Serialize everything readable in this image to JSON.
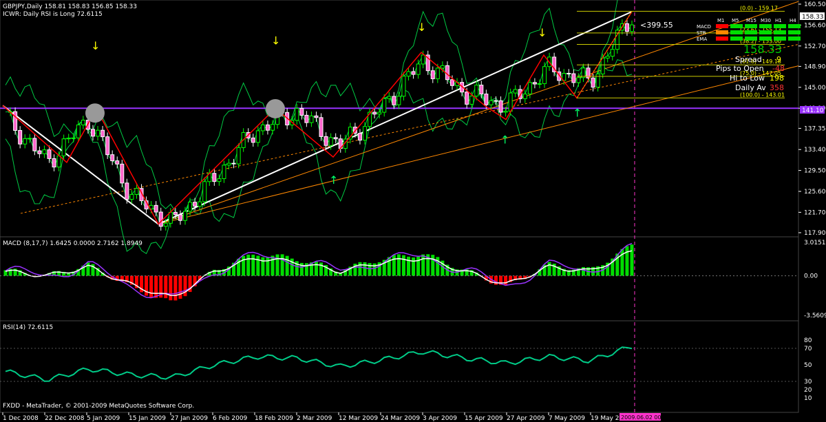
{
  "header": {
    "symbol_line": "GBPJPY,Daily  158.81 158.83 156.85 158.33",
    "indicator_line": "ICWR: Daily RSI is Long 72.6115"
  },
  "copyright": "FXDD - MetaTrader, © 2001-2009 MetaQuotes Software Corp.",
  "colors": {
    "background": "#000000",
    "grid": "#2a2a2a",
    "bull_candle": "#00ff00",
    "bear_candle": "#ffffff",
    "bear_body": "#ff66cc",
    "zigzag": "#ff0000",
    "trendline": "#ffffff",
    "channel": "#ff8800",
    "bollinger": "#00cc44",
    "horizontal_line": "#9933ff",
    "macd_pos": "#00dd00",
    "macd_neg": "#ff0000",
    "macd_line": "#ffffff",
    "signal_line": "#9933ff",
    "rsi_line": "#00cc88",
    "fib": "#cccc00"
  },
  "price_axis": {
    "ticks": [
      "160.50",
      "156.60",
      "152.70",
      "148.90",
      "145.00",
      "141.10",
      "137.35",
      "133.40",
      "129.50",
      "125.60",
      "121.70",
      "117.90"
    ],
    "price_tag": "158.33",
    "hline_tag": "141.10"
  },
  "date_axis": {
    "ticks": [
      "1 Dec 2008",
      "22 Dec 2008",
      "5 Jan 2009",
      "15 Jan 2009",
      "27 Jan 2009",
      "6 Feb 2009",
      "18 Feb 2009",
      "2 Mar 2009",
      "12 Mar 2009",
      "24 Mar 2009",
      "3 Apr 2009",
      "15 Apr 2009",
      "27 Apr 2009",
      "7 May 2009",
      "19 May 2009"
    ],
    "cursor_label": "2009.06.02 00:00"
  },
  "fib_levels": [
    {
      "label": "(0.0) - 159.17"
    },
    {
      "label": "(23.6) - 155.13"
    },
    {
      "label": "(38.2) - 153.00"
    },
    {
      "label": "(61.8) - 149.18"
    },
    {
      "label": "(75.0) - 147.05"
    },
    {
      "label": "(100.0) - 143.01"
    }
  ],
  "info_panel": {
    "big_price": "158.33",
    "pips_annotation": "<399.55",
    "spread_label": "Spread",
    "spread_value": "9",
    "pips_open_label": "Pips to Open",
    "pips_open_value": "-48",
    "hi_low_label": "Hi to Low",
    "hi_low_value": "198",
    "daily_av_label": "Daily Av",
    "daily_av_value": "358",
    "tf_headers": [
      "M1",
      "M5",
      "M15",
      "M30",
      "H1",
      "H4"
    ],
    "rows": [
      "MACD",
      "STR",
      "EMA"
    ]
  },
  "macd_panel": {
    "title": "MACD (8,17,7) 1.6425 0.0000 2.7162 1.8949",
    "ticks": [
      "3.0151",
      "0.00",
      "-3.5609"
    ]
  },
  "rsi_panel": {
    "title": "RSI(14) 72.6115",
    "ticks": [
      "80",
      "70",
      "50",
      "30",
      "20",
      "10"
    ]
  },
  "chart_data": {
    "type": "line",
    "title": "GBPJPY,Daily",
    "ylim": [
      117.9,
      160.5
    ],
    "x": [
      "1 Dec 2008",
      "22 Dec 2008",
      "5 Jan 2009",
      "15 Jan 2009",
      "27 Jan 2009",
      "6 Feb 2009",
      "18 Feb 2009",
      "2 Mar 2009",
      "12 Mar 2009",
      "24 Mar 2009",
      "3 Apr 2009",
      "15 Apr 2009",
      "27 Apr 2009",
      "7 May 2009",
      "19 May 2009",
      "2009.06.02"
    ],
    "series": [
      {
        "name": "close",
        "values": [
          139.5,
          131.0,
          139.0,
          125.0,
          119.5,
          128.0,
          137.0,
          140.5,
          134.0,
          141.0,
          150.0,
          144.0,
          141.5,
          148.5,
          146.0,
          158.33
        ]
      },
      {
        "name": "MACD",
        "values": [
          0.5,
          0.0,
          1.0,
          -1.0,
          -2.5,
          0.5,
          2.0,
          1.5,
          0.5,
          1.5,
          2.0,
          0.5,
          -1.0,
          1.0,
          0.5,
          2.7
        ]
      },
      {
        "name": "RSI(14)",
        "values": [
          42,
          32,
          45,
          38,
          35,
          50,
          60,
          58,
          48,
          56,
          66,
          58,
          52,
          60,
          55,
          72.6
        ]
      }
    ]
  }
}
